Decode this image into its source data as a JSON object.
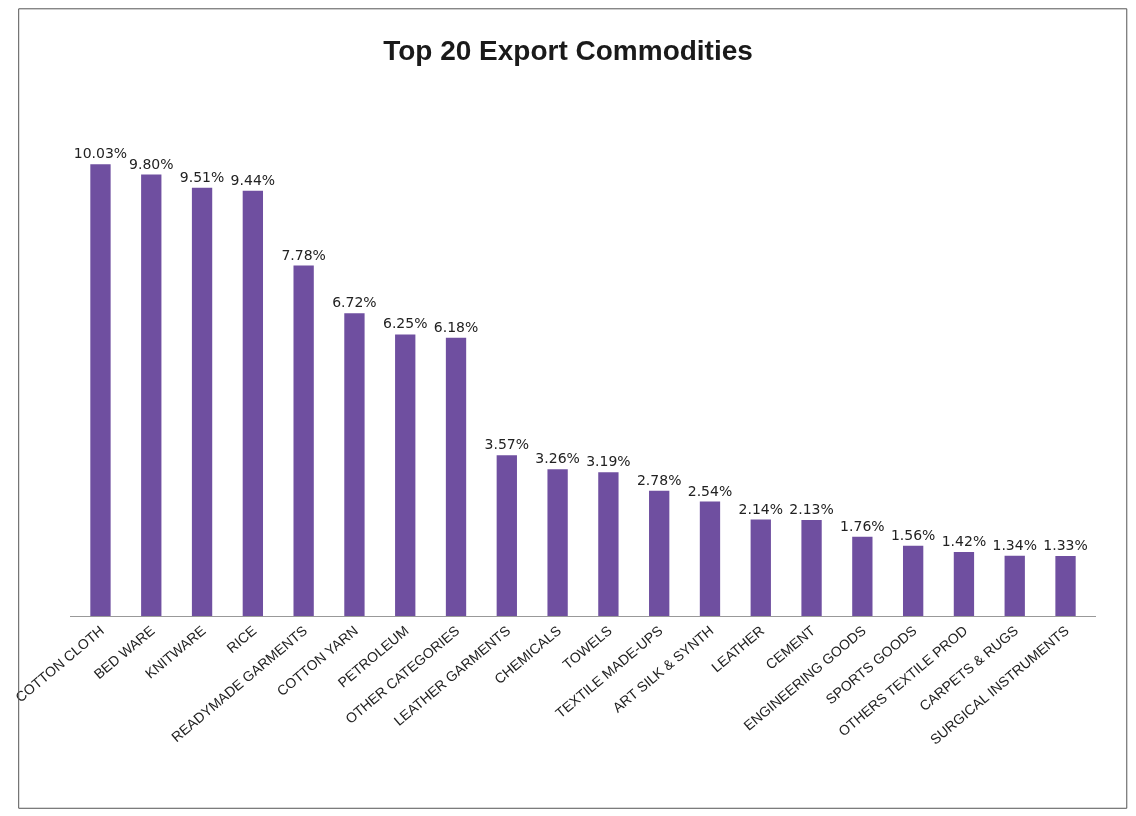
{
  "chart_data": {
    "type": "bar",
    "title": "Top 20 Export Commodities",
    "categories": [
      "COTTON CLOTH",
      "BED WARE",
      "KNITWARE",
      "RICE",
      "READYMADE GARMENTS",
      "COTTON YARN",
      "PETROLEUM",
      "OTHER CATEGORIES",
      "LEATHER GARMENTS",
      "CHEMICALS",
      "TOWELS",
      "TEXTILE MADE-UPS",
      "ART SILK & SYNTH",
      "LEATHER",
      "CEMENT",
      "ENGINEERING GOODS",
      "SPORTS GOODS",
      "OTHERS TEXTILE PROD",
      "CARPETS & RUGS",
      "SURGICAL INSTRUMENTS"
    ],
    "values": [
      10.03,
      9.8,
      9.51,
      9.44,
      7.78,
      6.72,
      6.25,
      6.18,
      3.57,
      3.26,
      3.19,
      2.78,
      2.54,
      2.14,
      2.13,
      1.76,
      1.56,
      1.42,
      1.34,
      1.33
    ],
    "value_labels": [
      "10.03%",
      "9.80%",
      "9.51%",
      "9.44%",
      "7.78%",
      "6.72%",
      "6.25%",
      "6.18%",
      "3.57%",
      "3.26%",
      "3.19%",
      "2.78%",
      "2.54%",
      "2.14%",
      "2.13%",
      "1.76%",
      "1.56%",
      "1.42%",
      "1.34%",
      "1.33%"
    ],
    "color": "#6f4fa0"
  }
}
